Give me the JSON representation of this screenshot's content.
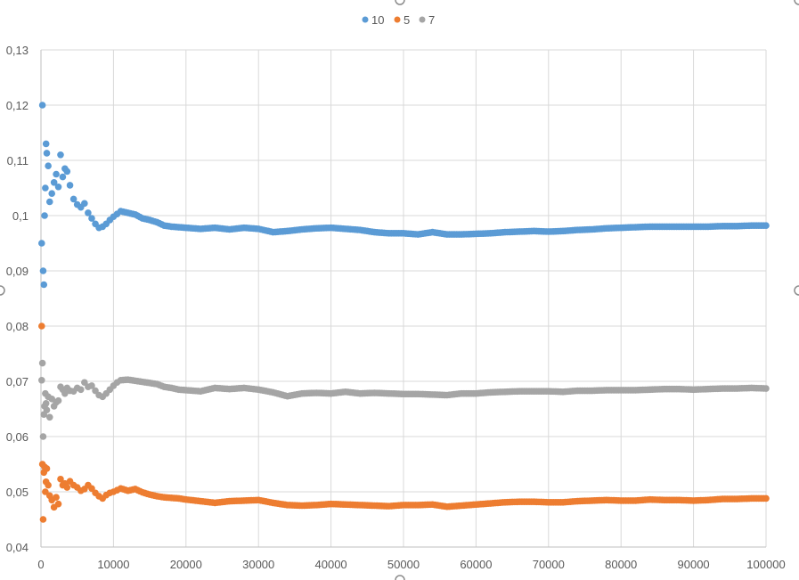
{
  "chart_data": {
    "type": "scatter",
    "title": "",
    "xlabel": "",
    "ylabel": "",
    "xlim": [
      0,
      100000
    ],
    "ylim": [
      0.04,
      0.13
    ],
    "x_ticks": [
      0,
      10000,
      20000,
      30000,
      40000,
      50000,
      60000,
      70000,
      80000,
      90000,
      100000
    ],
    "x_tick_labels": [
      "0",
      "10000",
      "20000",
      "30000",
      "40000",
      "50000",
      "60000",
      "70000",
      "80000",
      "90000",
      "100000"
    ],
    "y_ticks": [
      0.04,
      0.05,
      0.06,
      0.07,
      0.08,
      0.09,
      0.1,
      0.11,
      0.12,
      0.13
    ],
    "y_tick_labels": [
      "0,04",
      "0,05",
      "0,06",
      "0,07",
      "0,08",
      "0,09",
      "0,1",
      "0,11",
      "0,12",
      "0,13"
    ],
    "grid": true,
    "legend_position": "top-center",
    "series": [
      {
        "name": "10",
        "color": "#5b9bd5",
        "x": [
          100,
          200,
          300,
          400,
          500,
          600,
          700,
          800,
          1000,
          1200,
          1500,
          1800,
          2100,
          2400,
          2700,
          3000,
          3300,
          3600,
          4000,
          4500,
          5000,
          5500,
          6000,
          6500,
          7000,
          7500,
          8000,
          8500,
          9000,
          9500,
          10000,
          10500,
          11000,
          12000,
          13000,
          14000,
          15000,
          16000,
          17000,
          18000,
          19000,
          20000,
          22000,
          24000,
          26000,
          28000,
          30000,
          32000,
          34000,
          36000,
          38000,
          40000,
          42000,
          44000,
          46000,
          48000,
          50000,
          52000,
          54000,
          56000,
          58000,
          60000,
          62000,
          64000,
          66000,
          68000,
          70000,
          72000,
          74000,
          76000,
          78000,
          80000,
          82000,
          84000,
          86000,
          88000,
          90000,
          92000,
          94000,
          96000,
          98000,
          100000
        ],
        "y": [
          0.095,
          0.12,
          0.09,
          0.0875,
          0.1,
          0.105,
          0.113,
          0.1113,
          0.109,
          0.1025,
          0.104,
          0.106,
          0.1075,
          0.1052,
          0.111,
          0.107,
          0.1085,
          0.108,
          0.1055,
          0.103,
          0.102,
          0.1015,
          0.1022,
          0.1005,
          0.0995,
          0.0985,
          0.0978,
          0.098,
          0.0985,
          0.0992,
          0.0998,
          0.1003,
          0.1008,
          0.1005,
          0.1002,
          0.0995,
          0.0992,
          0.0988,
          0.0982,
          0.098,
          0.0979,
          0.0978,
          0.0976,
          0.0978,
          0.0975,
          0.0978,
          0.0976,
          0.097,
          0.0972,
          0.0975,
          0.0977,
          0.0978,
          0.0976,
          0.0974,
          0.097,
          0.0968,
          0.0968,
          0.0966,
          0.097,
          0.0966,
          0.0966,
          0.0967,
          0.0968,
          0.097,
          0.0971,
          0.0972,
          0.0971,
          0.0972,
          0.0974,
          0.0975,
          0.0977,
          0.0978,
          0.0979,
          0.098,
          0.098,
          0.098,
          0.098,
          0.098,
          0.0981,
          0.0981,
          0.0982,
          0.0982
        ]
      },
      {
        "name": "5",
        "color": "#ed7d31",
        "x": [
          100,
          200,
          300,
          400,
          500,
          600,
          700,
          800,
          1000,
          1200,
          1500,
          1800,
          2100,
          2400,
          2700,
          3000,
          3300,
          3600,
          4000,
          4500,
          5000,
          5500,
          6000,
          6500,
          7000,
          7500,
          8000,
          8500,
          9000,
          9500,
          10000,
          10500,
          11000,
          12000,
          13000,
          14000,
          15000,
          16000,
          17000,
          18000,
          19000,
          20000,
          22000,
          24000,
          26000,
          28000,
          30000,
          32000,
          34000,
          36000,
          38000,
          40000,
          42000,
          44000,
          46000,
          48000,
          50000,
          52000,
          54000,
          56000,
          58000,
          60000,
          62000,
          64000,
          66000,
          68000,
          70000,
          72000,
          74000,
          76000,
          78000,
          80000,
          82000,
          84000,
          86000,
          88000,
          90000,
          92000,
          94000,
          96000,
          98000,
          100000
        ],
        "y": [
          0.08,
          0.055,
          0.045,
          0.0535,
          0.0545,
          0.05,
          0.0518,
          0.0542,
          0.0512,
          0.0493,
          0.0485,
          0.0472,
          0.049,
          0.0478,
          0.0523,
          0.0512,
          0.0515,
          0.0508,
          0.0519,
          0.0512,
          0.0508,
          0.0502,
          0.0505,
          0.0512,
          0.0506,
          0.0498,
          0.0492,
          0.0488,
          0.0494,
          0.0498,
          0.05,
          0.0503,
          0.0506,
          0.0502,
          0.0505,
          0.0499,
          0.0495,
          0.0492,
          0.049,
          0.0489,
          0.0488,
          0.0486,
          0.0483,
          0.048,
          0.0483,
          0.0484,
          0.0485,
          0.048,
          0.0476,
          0.0475,
          0.0476,
          0.0478,
          0.0477,
          0.0476,
          0.0475,
          0.0474,
          0.0476,
          0.0476,
          0.0477,
          0.0473,
          0.0475,
          0.0477,
          0.0479,
          0.0481,
          0.0482,
          0.0482,
          0.0481,
          0.0481,
          0.0483,
          0.0484,
          0.0485,
          0.0484,
          0.0484,
          0.0486,
          0.0485,
          0.0485,
          0.0484,
          0.0485,
          0.0487,
          0.0487,
          0.0488,
          0.0488
        ]
      },
      {
        "name": "7",
        "color": "#a5a5a5",
        "x": [
          100,
          200,
          300,
          400,
          500,
          600,
          700,
          800,
          1000,
          1200,
          1500,
          1800,
          2100,
          2400,
          2700,
          3000,
          3300,
          3600,
          4000,
          4500,
          5000,
          5500,
          6000,
          6500,
          7000,
          7500,
          8000,
          8500,
          9000,
          9500,
          10000,
          10500,
          11000,
          12000,
          13000,
          14000,
          15000,
          16000,
          17000,
          18000,
          19000,
          20000,
          22000,
          24000,
          26000,
          28000,
          30000,
          32000,
          34000,
          36000,
          38000,
          40000,
          42000,
          44000,
          46000,
          48000,
          50000,
          52000,
          54000,
          56000,
          58000,
          60000,
          62000,
          64000,
          66000,
          68000,
          70000,
          72000,
          74000,
          76000,
          78000,
          80000,
          82000,
          84000,
          86000,
          88000,
          90000,
          92000,
          94000,
          96000,
          98000,
          100000
        ],
        "y": [
          0.0702,
          0.0733,
          0.06,
          0.064,
          0.0655,
          0.0678,
          0.066,
          0.0648,
          0.0672,
          0.0635,
          0.0668,
          0.0655,
          0.0662,
          0.0665,
          0.069,
          0.0685,
          0.0678,
          0.0688,
          0.0683,
          0.0682,
          0.0688,
          0.0685,
          0.0698,
          0.069,
          0.0692,
          0.0683,
          0.0675,
          0.0672,
          0.0678,
          0.0685,
          0.0692,
          0.0698,
          0.0702,
          0.0703,
          0.0701,
          0.0699,
          0.0697,
          0.0695,
          0.069,
          0.0688,
          0.0685,
          0.0684,
          0.0682,
          0.0688,
          0.0686,
          0.0688,
          0.0685,
          0.068,
          0.0673,
          0.0678,
          0.0679,
          0.0678,
          0.0681,
          0.0678,
          0.0679,
          0.0678,
          0.0677,
          0.0677,
          0.0676,
          0.0675,
          0.0678,
          0.0678,
          0.068,
          0.0681,
          0.0682,
          0.0682,
          0.0682,
          0.0681,
          0.0683,
          0.0683,
          0.0684,
          0.0684,
          0.0684,
          0.0685,
          0.0686,
          0.0686,
          0.0685,
          0.0686,
          0.0687,
          0.0687,
          0.0688,
          0.0687
        ]
      }
    ]
  }
}
